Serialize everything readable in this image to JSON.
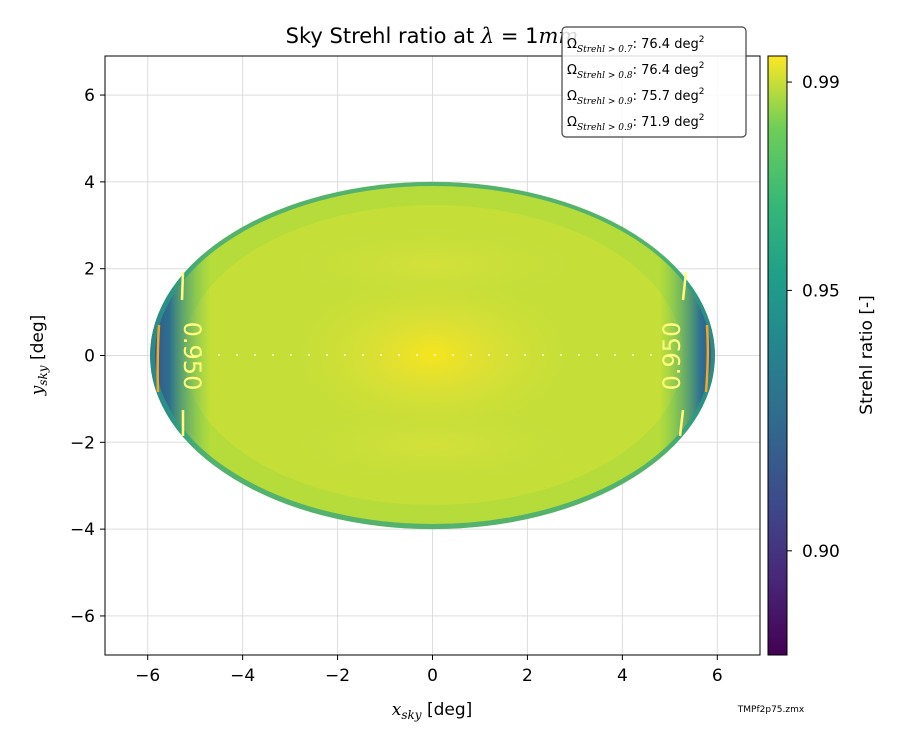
{
  "chart_data": {
    "type": "heatmap",
    "title_prefix": "Sky Strehl ratio at ",
    "title_lambda": "λ",
    "title_eq": " = 1",
    "title_unit": "mm",
    "xlabel_sym": "x",
    "xlabel_sub": "sky",
    "xlabel_unit": " [deg]",
    "ylabel_sym": "y",
    "ylabel_sub": "sky",
    "ylabel_unit": " [deg]",
    "xlim": [
      -6.9,
      6.9
    ],
    "ylim": [
      -6.9,
      6.9
    ],
    "xticks": [
      -6,
      -4,
      -2,
      0,
      2,
      4,
      6
    ],
    "yticks": [
      -6,
      -4,
      -2,
      0,
      2,
      4,
      6
    ],
    "tick_labels": [
      "−6",
      "−4",
      "−2",
      "0",
      "2",
      "4",
      "6"
    ],
    "grid": true,
    "colorbar": {
      "label": "Strehl ratio [-]",
      "range": [
        0.88,
        0.995
      ],
      "ticks": [
        0.9,
        0.95,
        0.99
      ],
      "tick_labels": [
        "0.90",
        "0.95",
        "0.99"
      ],
      "colormap": "viridis"
    },
    "field_extent": {
      "x_half_width": 5.95,
      "y_half_height": 4.0
    },
    "contours": [
      {
        "level": 0.95,
        "label": "0.950",
        "color": "#ffff80",
        "x_abs": 5.2
      },
      {
        "level": 0.93,
        "label": "",
        "color": "#f5a623",
        "x_abs": 5.8
      }
    ],
    "legend": {
      "placement": "top-right",
      "entries": [
        {
          "sub": "Strehl > 0.7",
          "value": ": 76.4 deg",
          "sup": "2"
        },
        {
          "sub": "Strehl > 0.8",
          "value": ": 76.4 deg",
          "sup": "2"
        },
        {
          "sub": "Strehl > 0.9",
          "value": ": 75.7 deg",
          "sup": "2"
        },
        {
          "sub": "Strehl > 0.9",
          "value": ": 71.9 deg",
          "sup": "2"
        }
      ]
    },
    "footnote": "TMPf2p75.zmx"
  }
}
